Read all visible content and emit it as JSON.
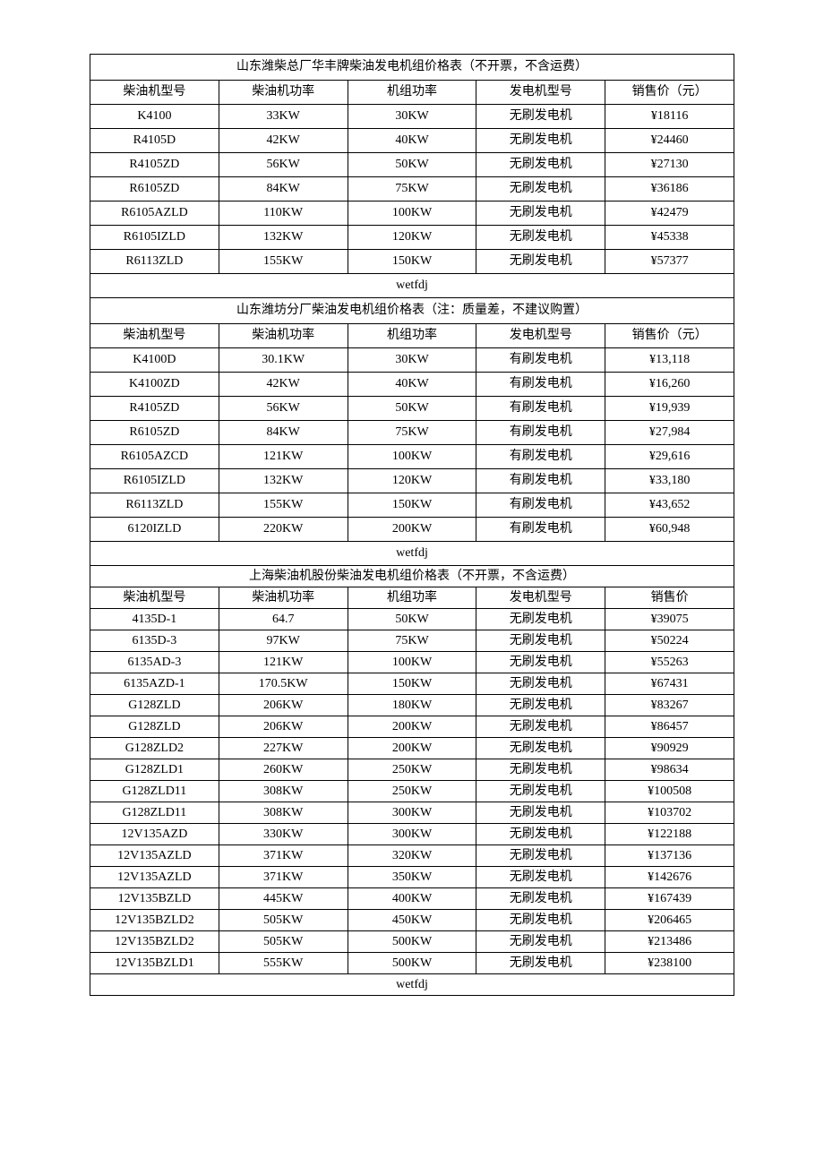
{
  "style": {
    "border_color": "#000000",
    "text_color": "#000000",
    "background_color": "#ffffff",
    "font_family": "SimSun",
    "base_fontsize": 14,
    "col_count": 5,
    "col_widths_pct": [
      20,
      20,
      20,
      20,
      20
    ]
  },
  "sections": [
    {
      "title": "山东潍柴总厂华丰牌柴油发电机组价格表（不开票，不含运费）",
      "headers": [
        "柴油机型号",
        "柴油机功率",
        "机组功率",
        "发电机型号",
        "销售价（元）"
      ],
      "rows": [
        [
          "K4100",
          "33KW",
          "30KW",
          "无刷发电机",
          "¥18116"
        ],
        [
          "R4105D",
          "42KW",
          "40KW",
          "无刷发电机",
          "¥24460"
        ],
        [
          "R4105ZD",
          "56KW",
          "50KW",
          "无刷发电机",
          "¥27130"
        ],
        [
          "R6105ZD",
          "84KW",
          "75KW",
          "无刷发电机",
          "¥36186"
        ],
        [
          "R6105AZLD",
          "110KW",
          "100KW",
          "无刷发电机",
          "¥42479"
        ],
        [
          "R6105IZLD",
          "132KW",
          "120KW",
          "无刷发电机",
          "¥45338"
        ],
        [
          "R6113ZLD",
          "155KW",
          "150KW",
          "无刷发电机",
          "¥57377"
        ]
      ],
      "footer": "wetfdj",
      "compact": false
    },
    {
      "title": "山东潍坊分厂柴油发电机组价格表（注：质量差，不建议购置）",
      "headers": [
        "柴油机型号",
        "柴油机功率",
        "机组功率",
        "发电机型号",
        "销售价（元）"
      ],
      "rows": [
        [
          "K4100D",
          "30.1KW",
          "30KW",
          "有刷发电机",
          "¥13,118"
        ],
        [
          "K4100ZD",
          "42KW",
          "40KW",
          "有刷发电机",
          "¥16,260"
        ],
        [
          "R4105ZD",
          "56KW",
          "50KW",
          "有刷发电机",
          "¥19,939"
        ],
        [
          "R6105ZD",
          "84KW",
          "75KW",
          "有刷发电机",
          "¥27,984"
        ],
        [
          "R6105AZCD",
          "121KW",
          "100KW",
          "有刷发电机",
          "¥29,616"
        ],
        [
          "R6105IZLD",
          "132KW",
          "120KW",
          "有刷发电机",
          "¥33,180"
        ],
        [
          "R6113ZLD",
          "155KW",
          "150KW",
          "有刷发电机",
          "¥43,652"
        ],
        [
          "6120IZLD",
          "220KW",
          "200KW",
          "有刷发电机",
          "¥60,948"
        ]
      ],
      "footer": "wetfdj",
      "compact": false
    },
    {
      "title": "上海柴油机股份柴油发电机组价格表（不开票，不含运费）",
      "headers": [
        "柴油机型号",
        "柴油机功率",
        "机组功率",
        "发电机型号",
        "销售价"
      ],
      "rows": [
        [
          "4135D-1",
          "64.7",
          "50KW",
          "无刷发电机",
          "¥39075"
        ],
        [
          "6135D-3",
          "97KW",
          "75KW",
          "无刷发电机",
          "¥50224"
        ],
        [
          "6135AD-3",
          "121KW",
          "100KW",
          "无刷发电机",
          "¥55263"
        ],
        [
          "6135AZD-1",
          "170.5KW",
          "150KW",
          "无刷发电机",
          "¥67431"
        ],
        [
          "G128ZLD",
          "206KW",
          "180KW",
          "无刷发电机",
          "¥83267"
        ],
        [
          "G128ZLD",
          "206KW",
          "200KW",
          "无刷发电机",
          "¥86457"
        ],
        [
          "G128ZLD2",
          "227KW",
          "200KW",
          "无刷发电机",
          "¥90929"
        ],
        [
          "G128ZLD1",
          "260KW",
          "250KW",
          "无刷发电机",
          "¥98634"
        ],
        [
          "G128ZLD11",
          "308KW",
          "250KW",
          "无刷发电机",
          "¥100508"
        ],
        [
          "G128ZLD11",
          "308KW",
          "300KW",
          "无刷发电机",
          "¥103702"
        ],
        [
          "12V135AZD",
          "330KW",
          "300KW",
          "无刷发电机",
          "¥122188"
        ],
        [
          "12V135AZLD",
          "371KW",
          "320KW",
          "无刷发电机",
          "¥137136"
        ],
        [
          "12V135AZLD",
          "371KW",
          "350KW",
          "无刷发电机",
          "¥142676"
        ],
        [
          "12V135BZLD",
          "445KW",
          "400KW",
          "无刷发电机",
          "¥167439"
        ],
        [
          "12V135BZLD2",
          "505KW",
          "450KW",
          "无刷发电机",
          "¥206465"
        ],
        [
          "12V135BZLD2",
          "505KW",
          "500KW",
          "无刷发电机",
          "¥213486"
        ],
        [
          "12V135BZLD1",
          "555KW",
          "500KW",
          "无刷发电机",
          "¥238100"
        ]
      ],
      "footer": "wetfdj",
      "compact": true
    }
  ]
}
